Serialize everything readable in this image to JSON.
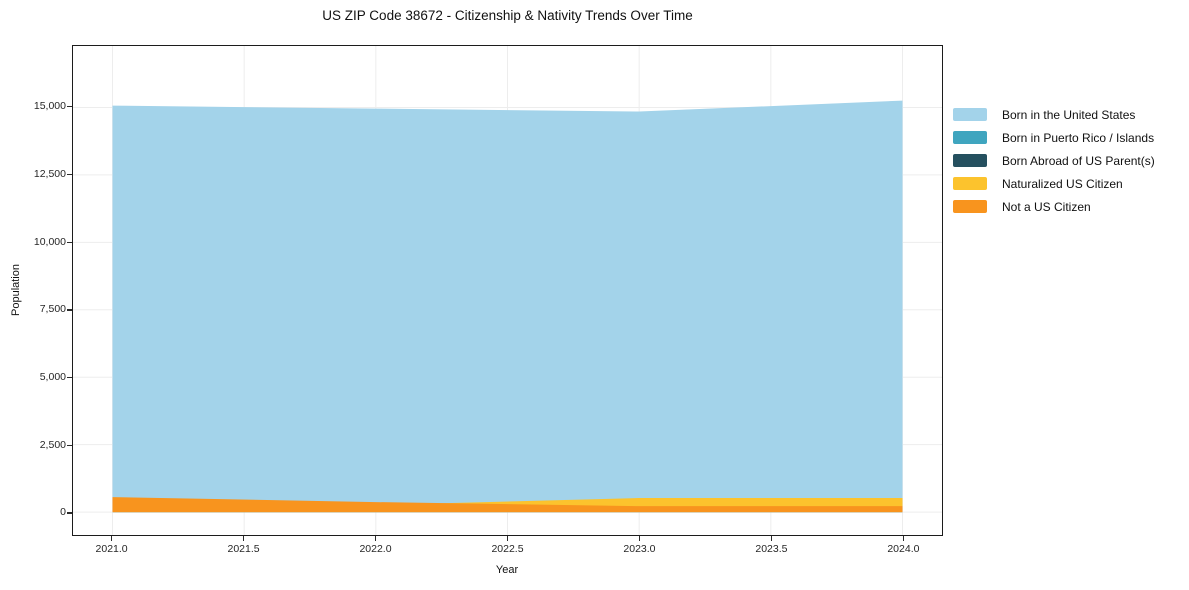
{
  "chart_data": {
    "type": "area",
    "stacked": true,
    "title": "US ZIP Code 38672 - Citizenship & Nativity Trends Over Time",
    "xlabel": "Year",
    "ylabel": "Population",
    "x": [
      2021,
      2022,
      2023,
      2024
    ],
    "series": [
      {
        "name": "Born in the United States",
        "color": "#a3d3ea",
        "values": [
          15070,
          14960,
          14850,
          15255
        ]
      },
      {
        "name": "Born in Puerto Rico / Islands",
        "color": "#3fa5bf",
        "values": [
          30,
          35,
          35,
          150
        ]
      },
      {
        "name": "Born Abroad of US Parent(s)",
        "color": "#25505f",
        "values": [
          40,
          75,
          290,
          295
        ]
      },
      {
        "name": "Naturalized US Citizen",
        "color": "#fcc32d",
        "values": [
          225,
          260,
          520,
          520
        ]
      },
      {
        "name": "Not a US Citizen",
        "color": "#f8941e",
        "values": [
          555,
          370,
          220,
          220
        ]
      }
    ],
    "totals": [
      15920,
      15700,
      15915,
      16440
    ],
    "xtick_values": [
      2021.0,
      2021.5,
      2022.0,
      2022.5,
      2023.0,
      2023.5,
      2024.0
    ],
    "xtick_labels": [
      "2021.0",
      "2021.5",
      "2022.0",
      "2022.5",
      "2023.0",
      "2023.5",
      "2024.0"
    ],
    "ytick_values": [
      0,
      2500,
      5000,
      7500,
      10000,
      12500,
      15000
    ],
    "ytick_labels": [
      "0",
      "2,500",
      "5,000",
      "7,500",
      "10,000",
      "12,500",
      "15,000"
    ],
    "xlim": [
      2020.85,
      2024.15
    ],
    "ylim": [
      -850,
      17280
    ],
    "grid": true,
    "grid_color": "#ededed",
    "spine_color": "#1c1c1c",
    "legend_position": "right-outside"
  }
}
